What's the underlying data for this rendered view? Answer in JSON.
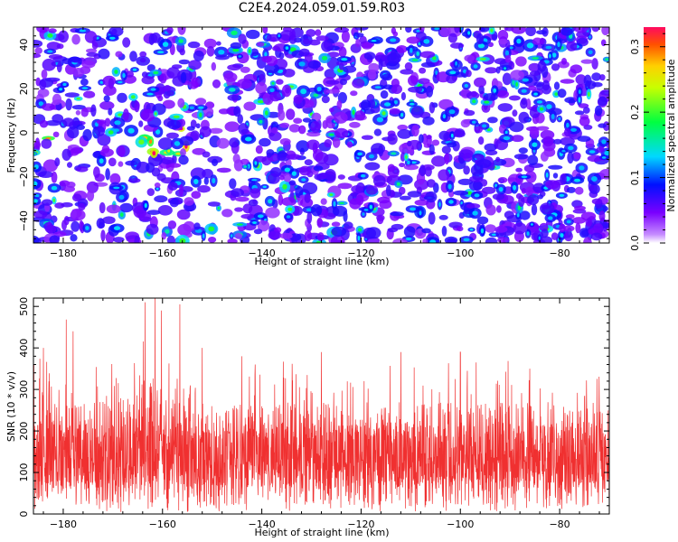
{
  "title": "C2E4.2024.059.01.59.R03",
  "chart_data": [
    {
      "type": "heatmap",
      "xlabel": "Height of straight line (km)",
      "ylabel": "Frequency (Hz)",
      "xlim": [
        -186,
        -70
      ],
      "ylim": [
        -50,
        48
      ],
      "x_ticks": [
        -180,
        -160,
        -140,
        -120,
        -100,
        -80
      ],
      "y_ticks": [
        -40,
        -20,
        0,
        20,
        40
      ],
      "colorbar": {
        "label": "Normalized spectral amplitude",
        "range": [
          0.0,
          0.33
        ],
        "ticks": [
          0.0,
          0.1,
          0.2,
          0.3
        ],
        "colors": [
          "#ffffff",
          "#8a00ff",
          "#0000ff",
          "#00ffff",
          "#00ff00",
          "#ffff00",
          "#ff0000"
        ]
      },
      "hot_regions": [
        {
          "x_range": [
            -186,
            -180
          ],
          "y_range": [
            -10,
            0
          ],
          "level": 0.2
        },
        {
          "x_range": [
            -166,
            -155
          ],
          "y_range": [
            -10,
            2
          ],
          "level": 0.25
        }
      ]
    },
    {
      "type": "line",
      "xlabel": "Height of straight line (km)",
      "ylabel": "SNR (10 * v/v)",
      "xlim": [
        -186,
        -70
      ],
      "ylim": [
        0,
        520
      ],
      "x_ticks": [
        -180,
        -160,
        -140,
        -120,
        -100,
        -80
      ],
      "y_ticks": [
        0,
        100,
        200,
        300,
        400,
        500
      ],
      "color": "#f03030",
      "typical_range": [
        60,
        220
      ],
      "peaks": [
        {
          "x": -163.5,
          "y": 510
        },
        {
          "x": -161.5,
          "y": 520
        },
        {
          "x": -160.2,
          "y": 490
        },
        {
          "x": -156.5,
          "y": 505
        },
        {
          "x": -178,
          "y": 440
        },
        {
          "x": -184,
          "y": 400
        },
        {
          "x": -152,
          "y": 400
        },
        {
          "x": -144,
          "y": 380
        },
        {
          "x": -128,
          "y": 390
        },
        {
          "x": -112,
          "y": 390
        },
        {
          "x": -100,
          "y": 390
        },
        {
          "x": -86,
          "y": 350
        }
      ]
    }
  ]
}
